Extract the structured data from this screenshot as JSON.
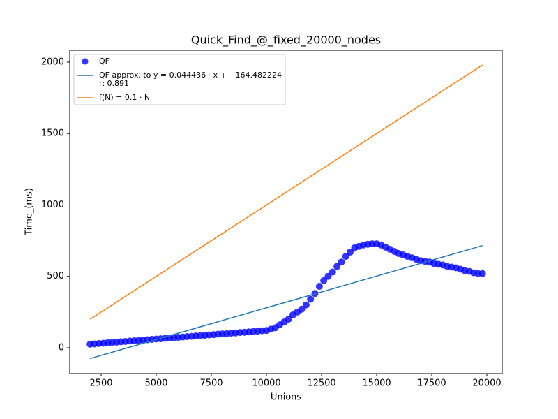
{
  "chart_data": {
    "type": "scatter",
    "title": "Quick_Find_@_fixed_20000_nodes",
    "x_label": "Unions",
    "y_label": "Time_(ms)",
    "xlim": [
      1076,
      20696
    ],
    "ylim": [
      -181,
      2083
    ],
    "xticks": [
      2500,
      5000,
      7500,
      10000,
      12500,
      15000,
      17500,
      20000
    ],
    "yticks": [
      0,
      500,
      1000,
      1500,
      2000
    ],
    "grid": false,
    "legend": "upper-left",
    "series": [
      {
        "name": "QF",
        "type": "scatter",
        "color": "#0000ff",
        "x": [
          2000,
          2200,
          2400,
          2600,
          2800,
          3000,
          3200,
          3400,
          3600,
          3800,
          4000,
          4200,
          4400,
          4600,
          4800,
          5000,
          5200,
          5400,
          5600,
          5800,
          6000,
          6200,
          6400,
          6600,
          6800,
          7000,
          7200,
          7400,
          7600,
          7800,
          8000,
          8200,
          8400,
          8600,
          8800,
          9000,
          9200,
          9400,
          9600,
          9800,
          10000,
          10200,
          10400,
          10600,
          10800,
          11000,
          11200,
          11400,
          11600,
          11800,
          12000,
          12200,
          12400,
          12600,
          12800,
          13000,
          13200,
          13400,
          13600,
          13800,
          14000,
          14200,
          14400,
          14600,
          14800,
          15000,
          15200,
          15400,
          15600,
          15800,
          16000,
          16200,
          16400,
          16600,
          16800,
          17000,
          17200,
          17400,
          17600,
          17800,
          18000,
          18200,
          18400,
          18600,
          18800,
          19000,
          19200,
          19400,
          19600,
          19800
        ],
        "values": [
          25,
          27,
          30,
          32,
          35,
          37,
          39,
          42,
          44,
          47,
          49,
          51,
          54,
          56,
          59,
          61,
          63,
          66,
          68,
          71,
          73,
          75,
          78,
          80,
          83,
          85,
          87,
          90,
          92,
          95,
          97,
          99,
          102,
          104,
          107,
          109,
          111,
          114,
          116,
          119,
          121,
          130,
          140,
          160,
          180,
          200,
          230,
          250,
          270,
          300,
          340,
          380,
          430,
          470,
          500,
          530,
          570,
          600,
          640,
          670,
          700,
          710,
          720,
          725,
          728,
          728,
          720,
          705,
          690,
          675,
          660,
          650,
          640,
          630,
          620,
          610,
          605,
          600,
          590,
          585,
          580,
          570,
          565,
          560,
          550,
          540,
          535,
          525,
          520,
          520
        ]
      },
      {
        "name": "QF approx. to y = 0.044436 · x + −164.482224\nr: 0.891",
        "type": "line",
        "color": "#1f77b4",
        "x": [
          2000,
          19800
        ],
        "values": [
          -75.61,
          715.35
        ]
      },
      {
        "name": "f(N) = 0.1 · N",
        "type": "line",
        "color": "#ff7f0e",
        "x": [
          2000,
          19800
        ],
        "values": [
          200,
          1980
        ]
      }
    ]
  }
}
